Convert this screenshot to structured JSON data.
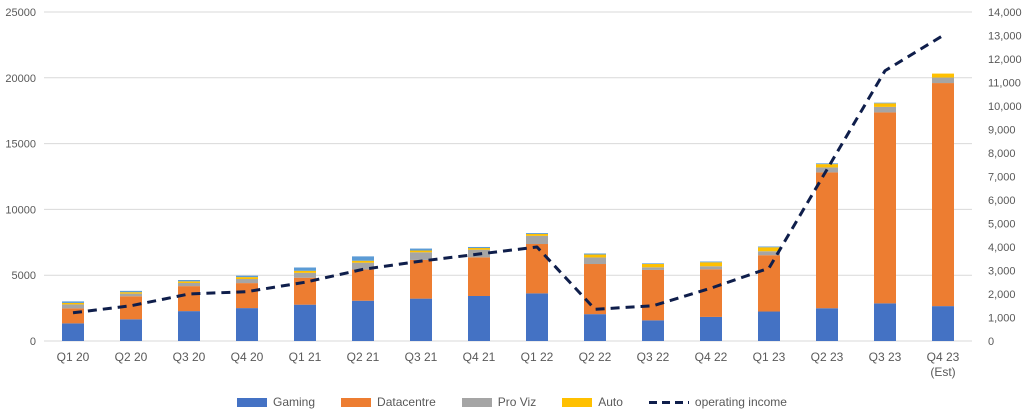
{
  "chart_data": {
    "type": "bar",
    "stacked": true,
    "categories": [
      "Q1 20",
      "Q2 20",
      "Q3 20",
      "Q4 20",
      "Q1 21",
      "Q2 21",
      "Q3 21",
      "Q4 21",
      "Q1 22",
      "Q2 22",
      "Q3 22",
      "Q4 22",
      "Q1 23",
      "Q2 23",
      "Q3 23",
      "Q4 23\n(Est)"
    ],
    "series": [
      {
        "name": "Gaming",
        "color": "#4472C4",
        "values": [
          1340,
          1650,
          2270,
          2500,
          2760,
          3060,
          3220,
          3420,
          3620,
          2040,
          1570,
          1830,
          2240,
          2490,
          2860,
          2650
        ]
      },
      {
        "name": "Datacentre",
        "color": "#ED7D31",
        "values": [
          1140,
          1750,
          1900,
          1900,
          2050,
          2370,
          2940,
          2940,
          3750,
          3810,
          3830,
          3620,
          4280,
          10320,
          14510,
          16950
        ]
      },
      {
        "name": "Pro Viz",
        "color": "#A5A5A5",
        "values": [
          300,
          200,
          240,
          310,
          370,
          520,
          580,
          580,
          620,
          500,
          200,
          230,
          300,
          380,
          420,
          420
        ]
      },
      {
        "name": "Auto",
        "color": "#FFC000",
        "values": [
          110,
          110,
          125,
          145,
          155,
          150,
          135,
          125,
          140,
          220,
          250,
          300,
          300,
          250,
          270,
          300
        ]
      }
    ],
    "other_segment": {
      "color": "#5B9BD5",
      "values": [
        120,
        100,
        100,
        110,
        250,
        330,
        150,
        80,
        70,
        80,
        50,
        60,
        60,
        60,
        50,
        0
      ]
    },
    "line_series": {
      "name": "operating income",
      "color": "#0F1E4B",
      "style": "dashed",
      "axis": "secondary",
      "values": [
        1200,
        1500,
        2000,
        2100,
        2500,
        3050,
        3400,
        3700,
        4000,
        1350,
        1500,
        2250,
        3100,
        7300,
        11500,
        13000
      ]
    },
    "y_left": {
      "ticks": [
        0,
        5000,
        10000,
        15000,
        20000,
        25000
      ],
      "labels": [
        "0",
        "5000",
        "10000",
        "15000",
        "20000",
        "25000"
      ],
      "ylim": [
        0,
        25000
      ]
    },
    "y_right": {
      "ticks": [
        0,
        1000,
        2000,
        3000,
        4000,
        5000,
        6000,
        7000,
        8000,
        9000,
        10000,
        11000,
        12000,
        13000,
        14000
      ],
      "labels": [
        "0",
        "1,000",
        "2,000",
        "3,000",
        "4,000",
        "5,000",
        "6,000",
        "7,000",
        "8,000",
        "9,000",
        "10,000",
        "11,000",
        "12,000",
        "13,000",
        "14,000"
      ],
      "ylim": [
        0,
        14000
      ]
    },
    "grid": true,
    "legend_position": "bottom",
    "legend": [
      {
        "label": "Gaming",
        "color": "#4472C4",
        "kind": "box"
      },
      {
        "label": "Datacentre",
        "color": "#ED7D31",
        "kind": "box"
      },
      {
        "label": "Pro Viz",
        "color": "#A5A5A5",
        "kind": "box"
      },
      {
        "label": "Auto",
        "color": "#FFC000",
        "kind": "box"
      },
      {
        "label": "operating income",
        "color": "#0F1E4B",
        "kind": "dash"
      }
    ]
  }
}
